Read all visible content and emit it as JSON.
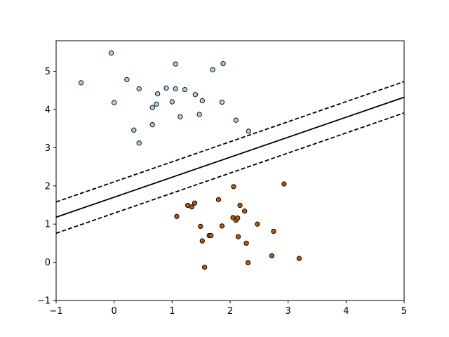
{
  "chart_data": {
    "type": "scatter",
    "xlim": [
      -1,
      5
    ],
    "ylim": [
      -1,
      5.8
    ],
    "x_ticks": [
      -1,
      0,
      1,
      2,
      3,
      4,
      5
    ],
    "y_ticks": [
      -1,
      0,
      1,
      2,
      3,
      4,
      5
    ],
    "grid": false,
    "colors": {
      "class_0": "#a6cee3",
      "class_1": "#b35806",
      "edge": "#000000",
      "line": "#000000"
    },
    "series": [
      {
        "points": [
          [
            -0.05,
            5.48
          ],
          [
            -0.57,
            4.7
          ],
          [
            0.0,
            4.18
          ],
          [
            0.22,
            4.78
          ],
          [
            0.43,
            4.54
          ],
          [
            0.34,
            3.46
          ],
          [
            0.43,
            3.12
          ],
          [
            0.66,
            3.6
          ],
          [
            0.66,
            4.05
          ],
          [
            0.73,
            4.14
          ],
          [
            0.75,
            4.41
          ],
          [
            0.9,
            4.56
          ],
          [
            1.0,
            4.2
          ],
          [
            1.06,
            4.54
          ],
          [
            1.06,
            5.19
          ],
          [
            1.14,
            3.81
          ],
          [
            1.22,
            4.52
          ],
          [
            1.4,
            4.39
          ],
          [
            1.47,
            3.87
          ],
          [
            1.52,
            4.23
          ],
          [
            1.7,
            5.04
          ],
          [
            1.86,
            4.19
          ],
          [
            1.88,
            5.2
          ],
          [
            2.1,
            3.72
          ],
          [
            2.32,
            3.43
          ]
        ]
      },
      {
        "points": [
          [
            1.08,
            1.2
          ],
          [
            1.27,
            1.49
          ],
          [
            1.34,
            1.45
          ],
          [
            1.39,
            1.55
          ],
          [
            1.49,
            0.94
          ],
          [
            1.52,
            0.56
          ],
          [
            1.56,
            -0.13
          ],
          [
            1.64,
            0.7
          ],
          [
            1.67,
            0.7
          ],
          [
            1.8,
            1.64
          ],
          [
            1.86,
            0.95
          ],
          [
            2.05,
            1.17
          ],
          [
            2.06,
            1.98
          ],
          [
            2.1,
            1.1
          ],
          [
            2.13,
            1.16
          ],
          [
            2.14,
            0.67
          ],
          [
            2.17,
            1.49
          ],
          [
            2.25,
            1.34
          ],
          [
            2.28,
            0.5
          ],
          [
            2.31,
            -0.01
          ],
          [
            2.47,
            1.0
          ],
          [
            2.72,
            0.17
          ],
          [
            2.75,
            0.81
          ],
          [
            2.93,
            2.05
          ],
          [
            3.19,
            0.1
          ]
        ]
      }
    ],
    "lines": [
      {
        "name": "decision boundary",
        "style": "solid",
        "points": [
          [
            -1,
            1.18
          ],
          [
            5,
            4.32
          ]
        ]
      },
      {
        "name": "margin upper",
        "style": "dashed",
        "points": [
          [
            -1,
            1.58
          ],
          [
            5,
            4.73
          ]
        ]
      },
      {
        "name": "margin lower",
        "style": "dashed",
        "points": [
          [
            -1,
            0.76
          ],
          [
            5,
            3.91
          ]
        ]
      }
    ]
  }
}
